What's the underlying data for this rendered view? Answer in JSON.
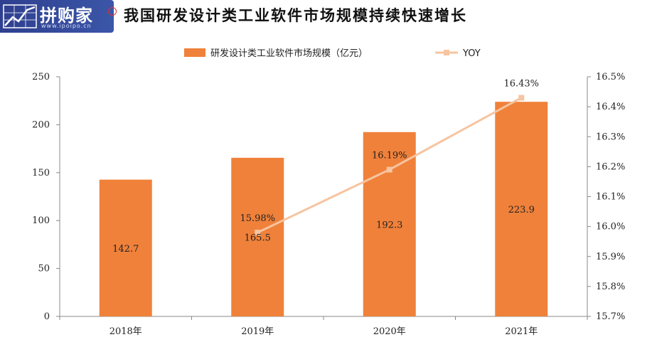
{
  "logo": {
    "text": "拼购家",
    "url": "www.ipoipo.cn"
  },
  "title": "我国研发设计类工业软件市场规模持续快速增长",
  "colors": {
    "bar": "#f0813a",
    "line": "#f6c4a0",
    "axis": "#888888"
  },
  "chart_data": {
    "type": "bar",
    "title": "我国研发设计类工业软件市场规模持续快速增长",
    "categories": [
      "2018年",
      "2019年",
      "2020年",
      "2021年"
    ],
    "series": [
      {
        "name": "研发设计类工业软件市场规模（亿元）",
        "type": "bar",
        "values": [
          142.7,
          165.5,
          192.3,
          223.9
        ],
        "labels": [
          "142.7",
          "165.5",
          "192.3",
          "223.9"
        ]
      },
      {
        "name": "YOY",
        "type": "line",
        "axis": "right",
        "values": [
          null,
          15.98,
          16.19,
          16.43
        ],
        "labels": [
          "",
          "15.98%",
          "16.19%",
          "16.43%"
        ]
      }
    ],
    "ylim": [
      0,
      250
    ],
    "yticks": [
      "0",
      "50",
      "100",
      "150",
      "200",
      "250"
    ],
    "y2lim": [
      15.7,
      16.5
    ],
    "y2ticks": [
      "15.7%",
      "15.8%",
      "15.9%",
      "16.0%",
      "16.1%",
      "16.2%",
      "16.3%",
      "16.4%",
      "16.5%"
    ],
    "legend": "top-center",
    "grid": false
  }
}
